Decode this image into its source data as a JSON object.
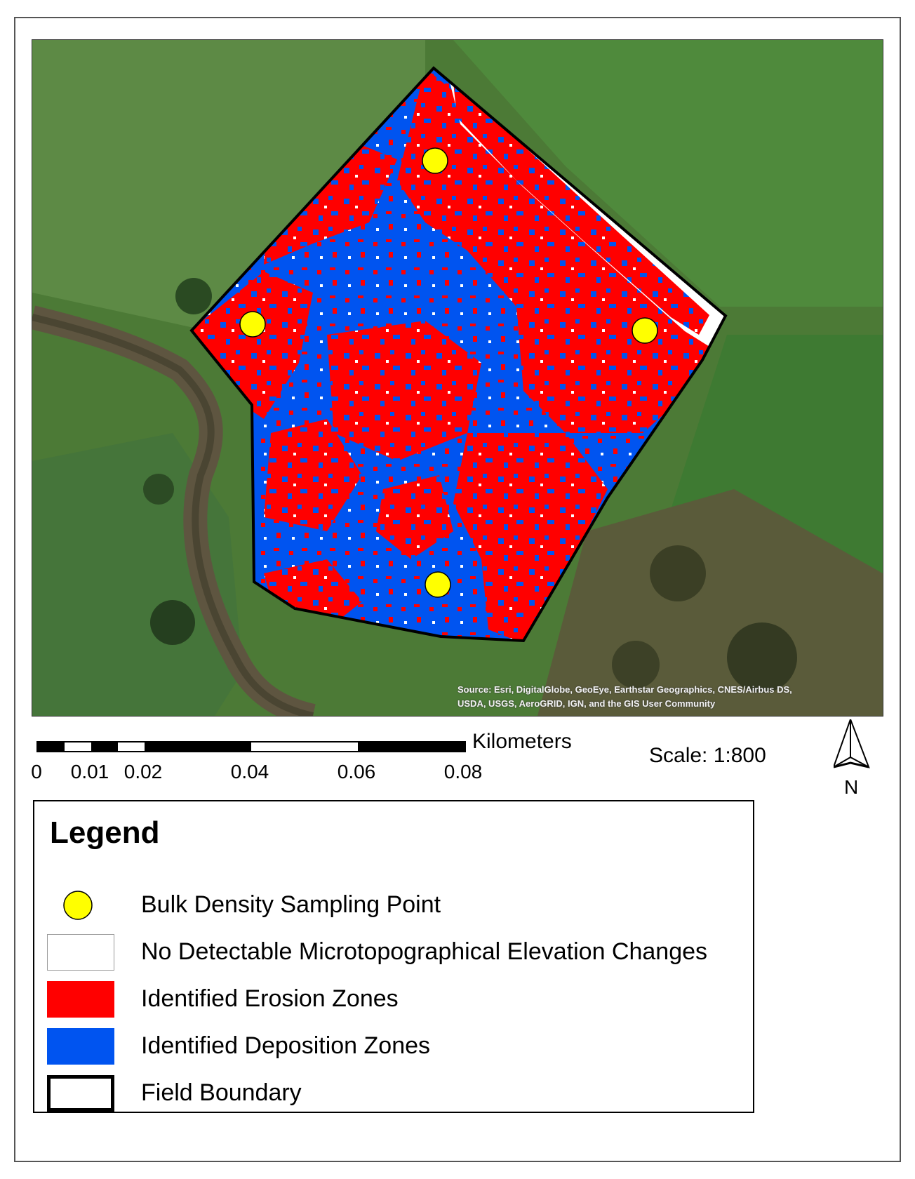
{
  "map": {
    "attribution": [
      "Source: Esri, DigitalGlobe, GeoEye, Earthstar Geographics, CNES/Airbus DS,",
      "USDA, USGS, AeroGRID, IGN, and the GIS User Community"
    ],
    "colors": {
      "erosion": "#ff0000",
      "deposition": "#0054f0",
      "no_change": "#ffffff",
      "sampling_point": "#ffff00",
      "boundary": "#000000"
    },
    "sampling_points": 4
  },
  "scalebar": {
    "unit": "Kilometers",
    "ticks": [
      "0",
      "0.01",
      "0.02",
      "0.04",
      "0.06",
      "0.08"
    ]
  },
  "scale_text": "Scale: 1:800",
  "north_arrow": {
    "label": "N",
    "icon": "north-arrow-icon"
  },
  "legend": {
    "title": "Legend",
    "items": [
      {
        "label": "Bulk Density Sampling Point",
        "symbol": "yellow-circle",
        "color": "#ffff00"
      },
      {
        "label": "No Detectable Microtopographical Elevation Changes",
        "symbol": "white-box",
        "color": "#ffffff"
      },
      {
        "label": "Identified Erosion Zones",
        "symbol": "red-box",
        "color": "#ff0000"
      },
      {
        "label": "Identified Deposition Zones",
        "symbol": "blue-box",
        "color": "#0054f0"
      },
      {
        "label": "Field Boundary",
        "symbol": "outlined-box",
        "color": "#000000"
      }
    ]
  }
}
